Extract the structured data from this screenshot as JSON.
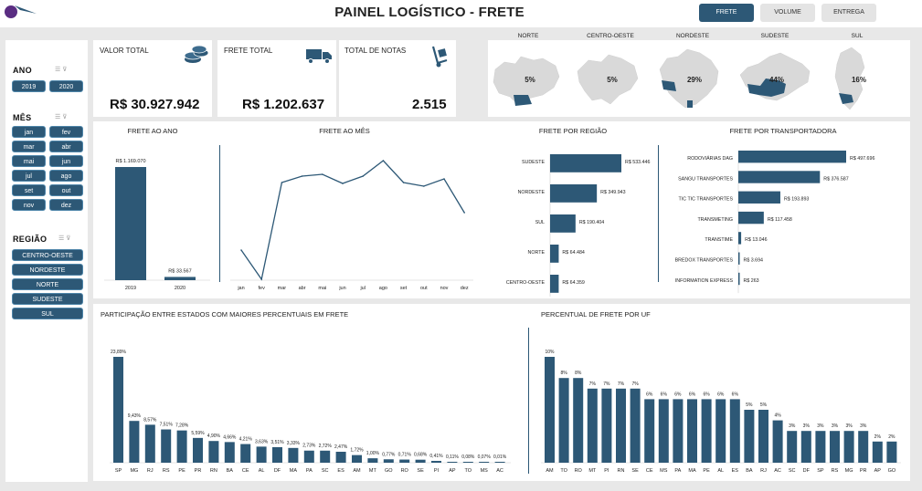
{
  "header": {
    "title": "PAINEL LOGÍSTICO - FRETE",
    "tabs": [
      {
        "label": "FRETE",
        "active": true
      },
      {
        "label": "VOLUME",
        "active": false
      },
      {
        "label": "ENTREGA",
        "active": false
      }
    ]
  },
  "colors": {
    "accent": "#2d5876",
    "background": "#e8e8e8",
    "map_fill": "#d9d9d9"
  },
  "slicers": {
    "ano": {
      "title": "ANO",
      "items": [
        "2019",
        "2020"
      ]
    },
    "mes": {
      "title": "MÊS",
      "items": [
        "jan",
        "fev",
        "mar",
        "abr",
        "mai",
        "jun",
        "jul",
        "ago",
        "set",
        "out",
        "nov",
        "dez"
      ]
    },
    "regiao": {
      "title": "REGIÃO",
      "items": [
        "CENTRO-OESTE",
        "NORDESTE",
        "NORTE",
        "SUDESTE",
        "SUL"
      ]
    }
  },
  "kpis": {
    "valor_total": {
      "label": "VALOR TOTAL",
      "value": "R$ 30.927.942",
      "icon": "coins-icon"
    },
    "frete_total": {
      "label": "FRETE TOTAL",
      "value": "R$ 1.202.637",
      "icon": "truck-icon"
    },
    "total_notas": {
      "label": "TOTAL DE NOTAS",
      "value": "2.515",
      "icon": "hand-truck-icon"
    }
  },
  "regions_map": [
    {
      "name": "NORTE",
      "pct": "5%"
    },
    {
      "name": "CENTRO-OESTE",
      "pct": "5%"
    },
    {
      "name": "NORDESTE",
      "pct": "29%"
    },
    {
      "name": "SUDESTE",
      "pct": "44%"
    },
    {
      "name": "SUL",
      "pct": "16%"
    }
  ],
  "chart_data": [
    {
      "id": "frete_ano",
      "type": "bar",
      "title": "FRETE AO ANO",
      "categories": [
        "2019",
        "2020"
      ],
      "values": [
        1169070,
        33567
      ],
      "labels": [
        "R$ 1.169.070",
        "R$ 33.567"
      ]
    },
    {
      "id": "frete_mes",
      "type": "line",
      "title": "FRETE AO MÊS",
      "categories": [
        "jan",
        "fev",
        "mar",
        "abr",
        "mai",
        "jun",
        "jul",
        "ago",
        "set",
        "out",
        "nov",
        "dez"
      ],
      "values": [
        33,
        1,
        107,
        114,
        116,
        106,
        114,
        131,
        107,
        103,
        111,
        74
      ]
    },
    {
      "id": "frete_regiao",
      "type": "bar",
      "orientation": "horizontal",
      "title": "FRETE POR REGIÃO",
      "categories": [
        "SUDESTE",
        "NORDESTE",
        "SUL",
        "NORTE",
        "CENTRO-OESTE"
      ],
      "values": [
        533446,
        349943,
        190404,
        64484,
        64359
      ],
      "labels": [
        "R$ 533.446",
        "R$ 349.943",
        "R$ 190.404",
        "R$ 64.484",
        "R$ 64.359"
      ]
    },
    {
      "id": "frete_transportadora",
      "type": "bar",
      "orientation": "horizontal",
      "title": "FRETE POR TRANSPORTADORA",
      "categories": [
        "RODOVIÁRIAS DAG",
        "SANGU TRANSPORTES",
        "TIC TIC TRANSPORTES",
        "TRANSMETING",
        "TRANSTIME",
        "BREDOX TRANSPORTES",
        "INFORMATION EXPRESS"
      ],
      "values": [
        497696,
        376587,
        193893,
        117458,
        13046,
        3694,
        263
      ],
      "labels": [
        "R$ 497.696",
        "R$ 376.587",
        "R$ 193.893",
        "R$ 117.458",
        "R$ 13.046",
        "R$ 3.694",
        "R$ 263"
      ]
    },
    {
      "id": "participacao_estados",
      "type": "bar",
      "title": "PARTICIPAÇÃO ENTRE ESTADOS COM MAIORES PERCENTUAIS EM FRETE",
      "categories": [
        "SP",
        "MG",
        "RJ",
        "RS",
        "PE",
        "PR",
        "RN",
        "BA",
        "CE",
        "AL",
        "DF",
        "MA",
        "PA",
        "SC",
        "ES",
        "AM",
        "MT",
        "GO",
        "RO",
        "SE",
        "PI",
        "AP",
        "TO",
        "MS",
        "AC"
      ],
      "values": [
        23.89,
        9.43,
        8.57,
        7.51,
        7.28,
        5.59,
        4.9,
        4.66,
        4.21,
        3.63,
        3.51,
        3.33,
        2.73,
        2.72,
        2.47,
        1.72,
        1.0,
        0.77,
        0.71,
        0.68,
        0.41,
        0.11,
        0.08,
        0.07,
        0.01
      ],
      "labels": [
        "23,89%",
        "9,43%",
        "8,57%",
        "7,51%",
        "7,28%",
        "5,59%",
        "4,90%",
        "4,66%",
        "4,21%",
        "3,63%",
        "3,51%",
        "3,33%",
        "2,73%",
        "2,72%",
        "2,47%",
        "1,72%",
        "1,00%",
        "0,77%",
        "0,71%",
        "0,68%",
        "0,41%",
        "0,11%",
        "0,08%",
        "0,07%",
        "0,01%"
      ]
    },
    {
      "id": "percentual_uf",
      "type": "bar",
      "title": "PERCENTUAL DE FRETE POR UF",
      "categories": [
        "AM",
        "TO",
        "RO",
        "MT",
        "PI",
        "RN",
        "SE",
        "CE",
        "MS",
        "PA",
        "MA",
        "PE",
        "AL",
        "ES",
        "BA",
        "RJ",
        "AC",
        "SC",
        "DF",
        "SP",
        "RS",
        "MG",
        "PR",
        "AP",
        "GO"
      ],
      "values": [
        10,
        8,
        8,
        7,
        7,
        7,
        7,
        6,
        6,
        6,
        6,
        6,
        6,
        6,
        5,
        5,
        4,
        3,
        3,
        3,
        3,
        3,
        3,
        2,
        2
      ],
      "labels": [
        "10%",
        "8%",
        "8%",
        "7%",
        "7%",
        "7%",
        "7%",
        "6%",
        "6%",
        "6%",
        "6%",
        "6%",
        "6%",
        "6%",
        "5%",
        "5%",
        "4%",
        "3%",
        "3%",
        "3%",
        "3%",
        "3%",
        "3%",
        "2%",
        "2%"
      ]
    }
  ]
}
